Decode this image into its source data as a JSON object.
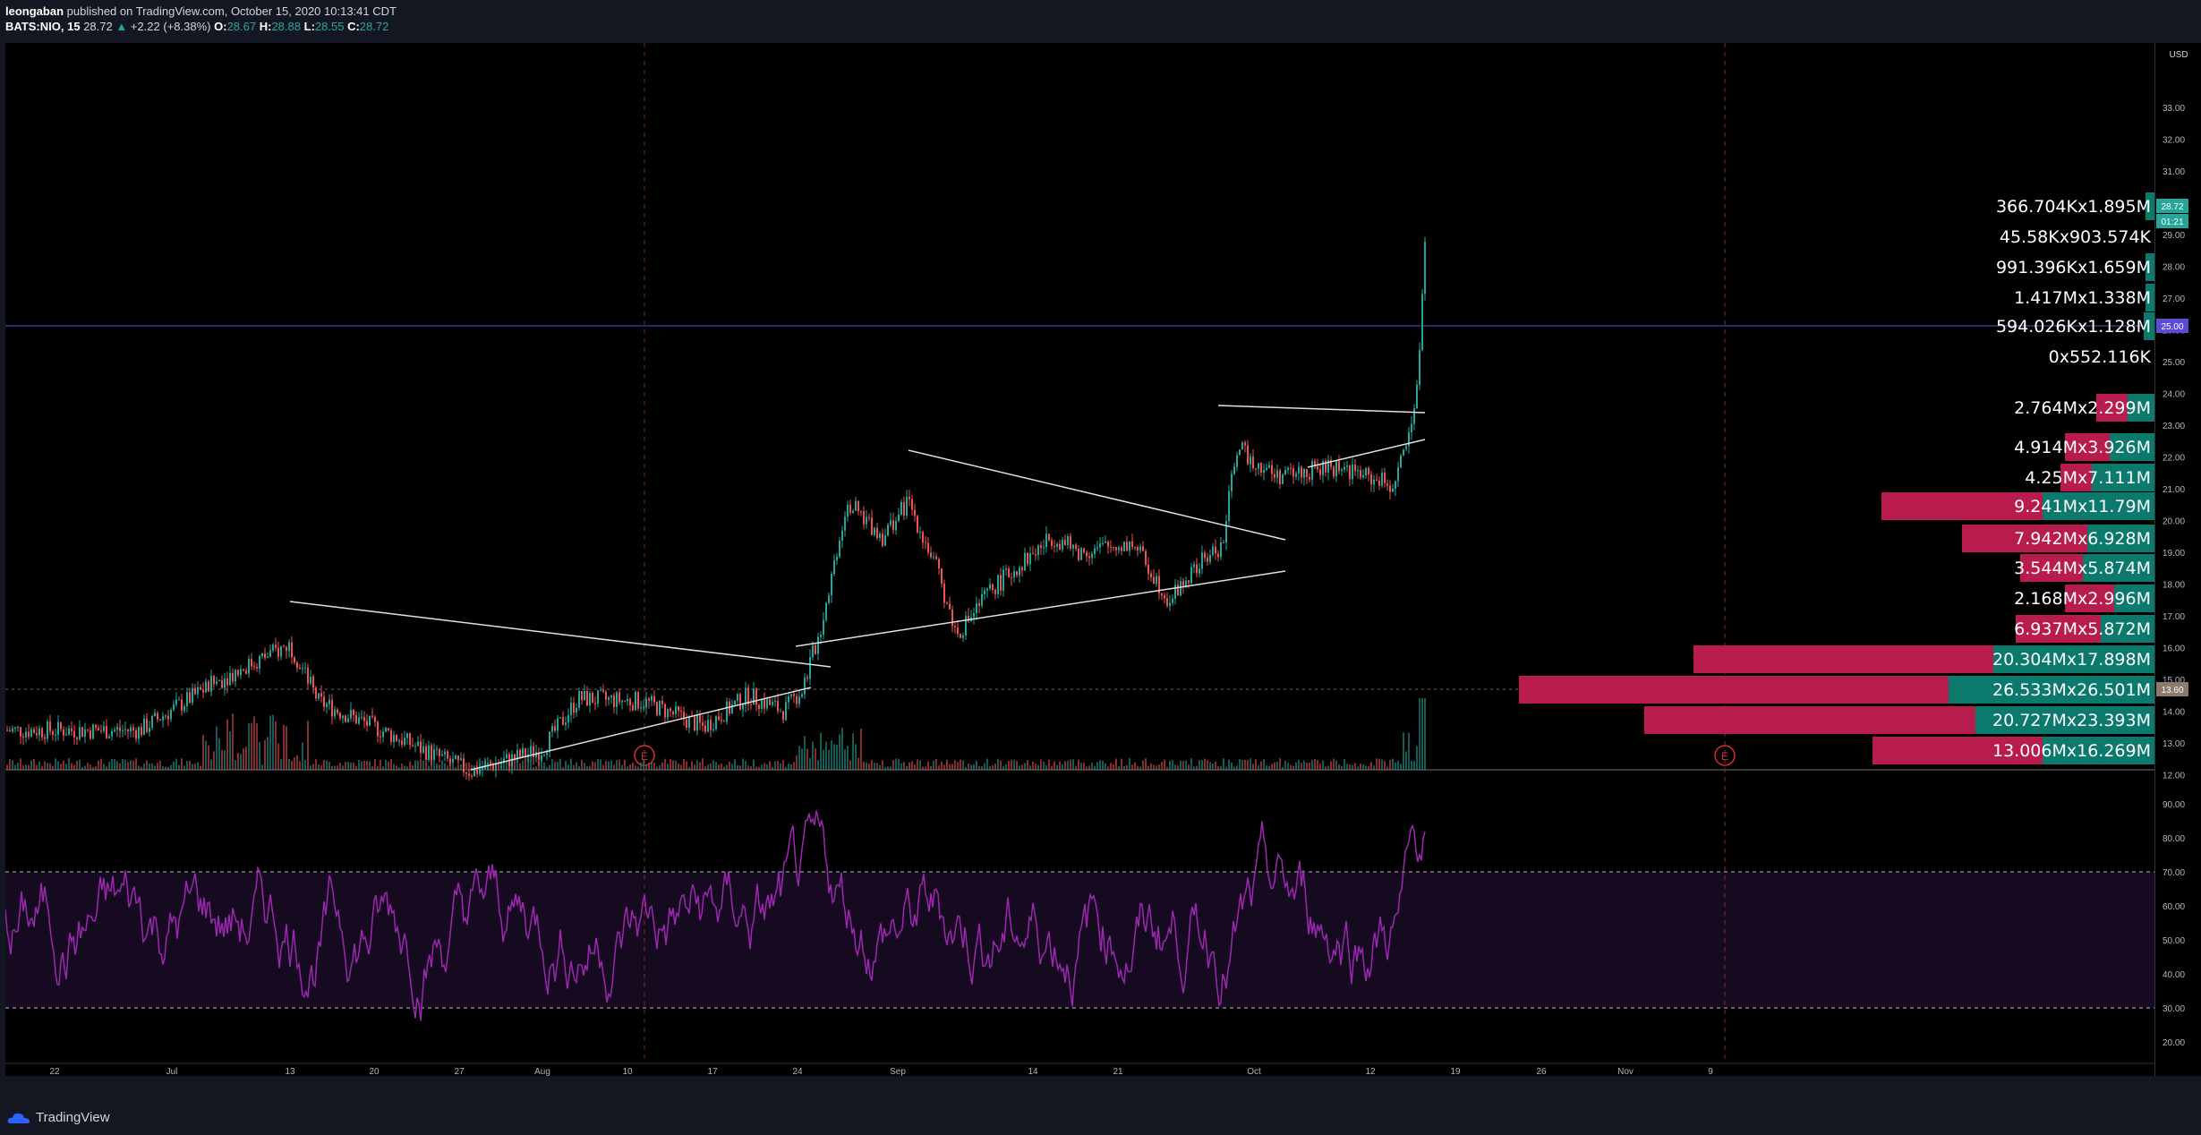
{
  "header": {
    "user": "leongaban",
    "published": " published on TradingView.com, October 15, 2020 10:13:41 CDT",
    "symbol": "BATS:NIO, 15",
    "last": "28.72",
    "change": "+2.22 (+8.38%)",
    "o_label": "O:",
    "o": "28.67",
    "h_label": "H:",
    "h": "28.88",
    "l_label": "L:",
    "l": "28.55",
    "c_label": "C:",
    "c": "28.72"
  },
  "price_axis": {
    "currency": "USD",
    "ticks": [
      "33.00",
      "32.00",
      "31.00",
      "30.00",
      "29.00",
      "28.00",
      "27.00",
      "26.00",
      "25.00",
      "24.00",
      "23.00",
      "22.00",
      "21.00",
      "20.00",
      "19.00",
      "18.00",
      "17.00",
      "16.00",
      "15.00",
      "14.00",
      "13.00",
      "12.00"
    ],
    "last_price_tag": "28.72",
    "countdown_tag": "01:21",
    "hline_tag": "25.00",
    "vp_poc_tag": "13.60"
  },
  "rsi_axis": {
    "ticks": [
      "90.00",
      "80.00",
      "70.00",
      "60.00",
      "50.00",
      "40.00",
      "30.00",
      "20.00"
    ]
  },
  "time_axis": {
    "ticks": [
      "22",
      "Jul",
      "13",
      "20",
      "27",
      "Aug",
      "10",
      "17",
      "24",
      "Sep",
      "14",
      "21",
      "Oct",
      "12",
      "19",
      "26",
      "Nov",
      "9"
    ]
  },
  "volume_profile": {
    "rows": [
      {
        "label": "366.704Kx1.895M"
      },
      {
        "label": "45.58Kx903.574K"
      },
      {
        "label": "991.396Kx1.659M"
      },
      {
        "label": "1.417Mx1.338M"
      },
      {
        "label": "594.026Kx1.128M"
      },
      {
        "label": "0x552.116K"
      },
      {
        "label": "2.764Mx2.299M"
      },
      {
        "label": "4.914Mx3.926M"
      },
      {
        "label": "4.25Mx7.111M"
      },
      {
        "label": "9.241Mx11.79M"
      },
      {
        "label": "7.942Mx6.928M"
      },
      {
        "label": "3.544Mx5.874M"
      },
      {
        "label": "2.168Mx2.996M"
      },
      {
        "label": "6.937Mx5.872M"
      },
      {
        "label": "20.304Mx17.898M"
      },
      {
        "label": "26.533Mx26.501M"
      },
      {
        "label": "20.727Mx23.393M"
      },
      {
        "label": "13.006Mx16.269M"
      }
    ]
  },
  "events": [
    {
      "icon": "earnings-icon",
      "label": "E"
    },
    {
      "icon": "earnings-icon",
      "label": "E"
    }
  ],
  "footer": {
    "brand": "TradingView"
  },
  "colors": {
    "up": "#26a69a",
    "down": "#ef5350",
    "rsi": "#9c27b0",
    "hline": "#5b4bd4",
    "vp_sell": "#b71c4c",
    "vp_buy": "#0b7a6d",
    "bg": "#000000"
  }
}
